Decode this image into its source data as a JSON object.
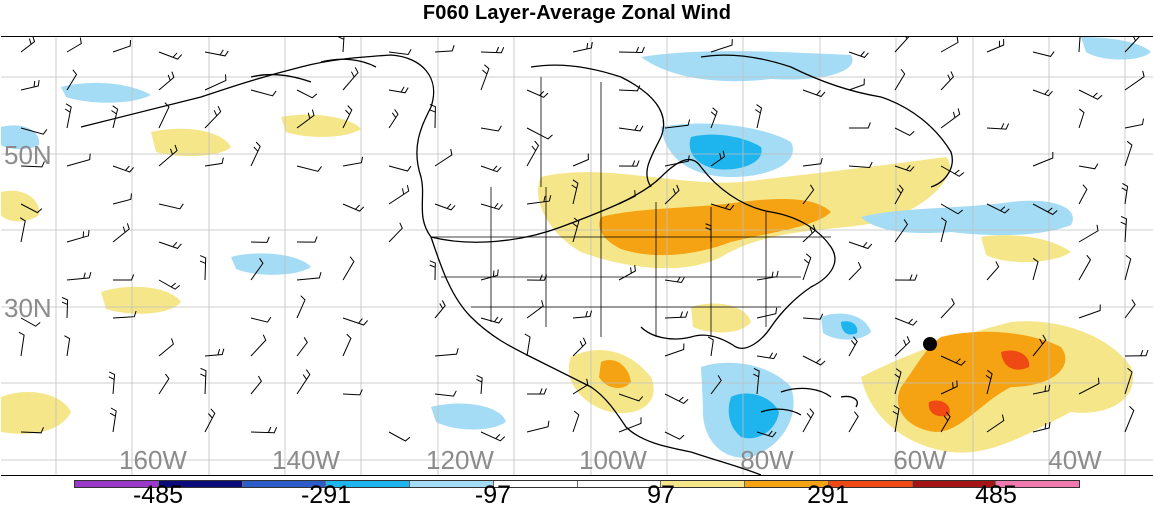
{
  "title": "F060 Layer-Average Zonal Wind",
  "map": {
    "latitude_labels": [
      "50N",
      "30N"
    ],
    "longitude_labels": [
      "160W",
      "140W",
      "120W",
      "100W",
      "80W",
      "60W",
      "40W"
    ],
    "marker": "black dot near 25N 60W"
  },
  "colorbar": {
    "colors": [
      "#9a39c9",
      "#0a0a7a",
      "#2c5cc9",
      "#1eb4ee",
      "#a5dcf5",
      "#ffffff",
      "#ffffff",
      "#f6e68a",
      "#f5a312",
      "#ef4a14",
      "#a51414",
      "#f07ab0"
    ],
    "tick_labels": [
      "-485",
      "-291",
      "-97",
      "97",
      "291",
      "485"
    ]
  }
}
